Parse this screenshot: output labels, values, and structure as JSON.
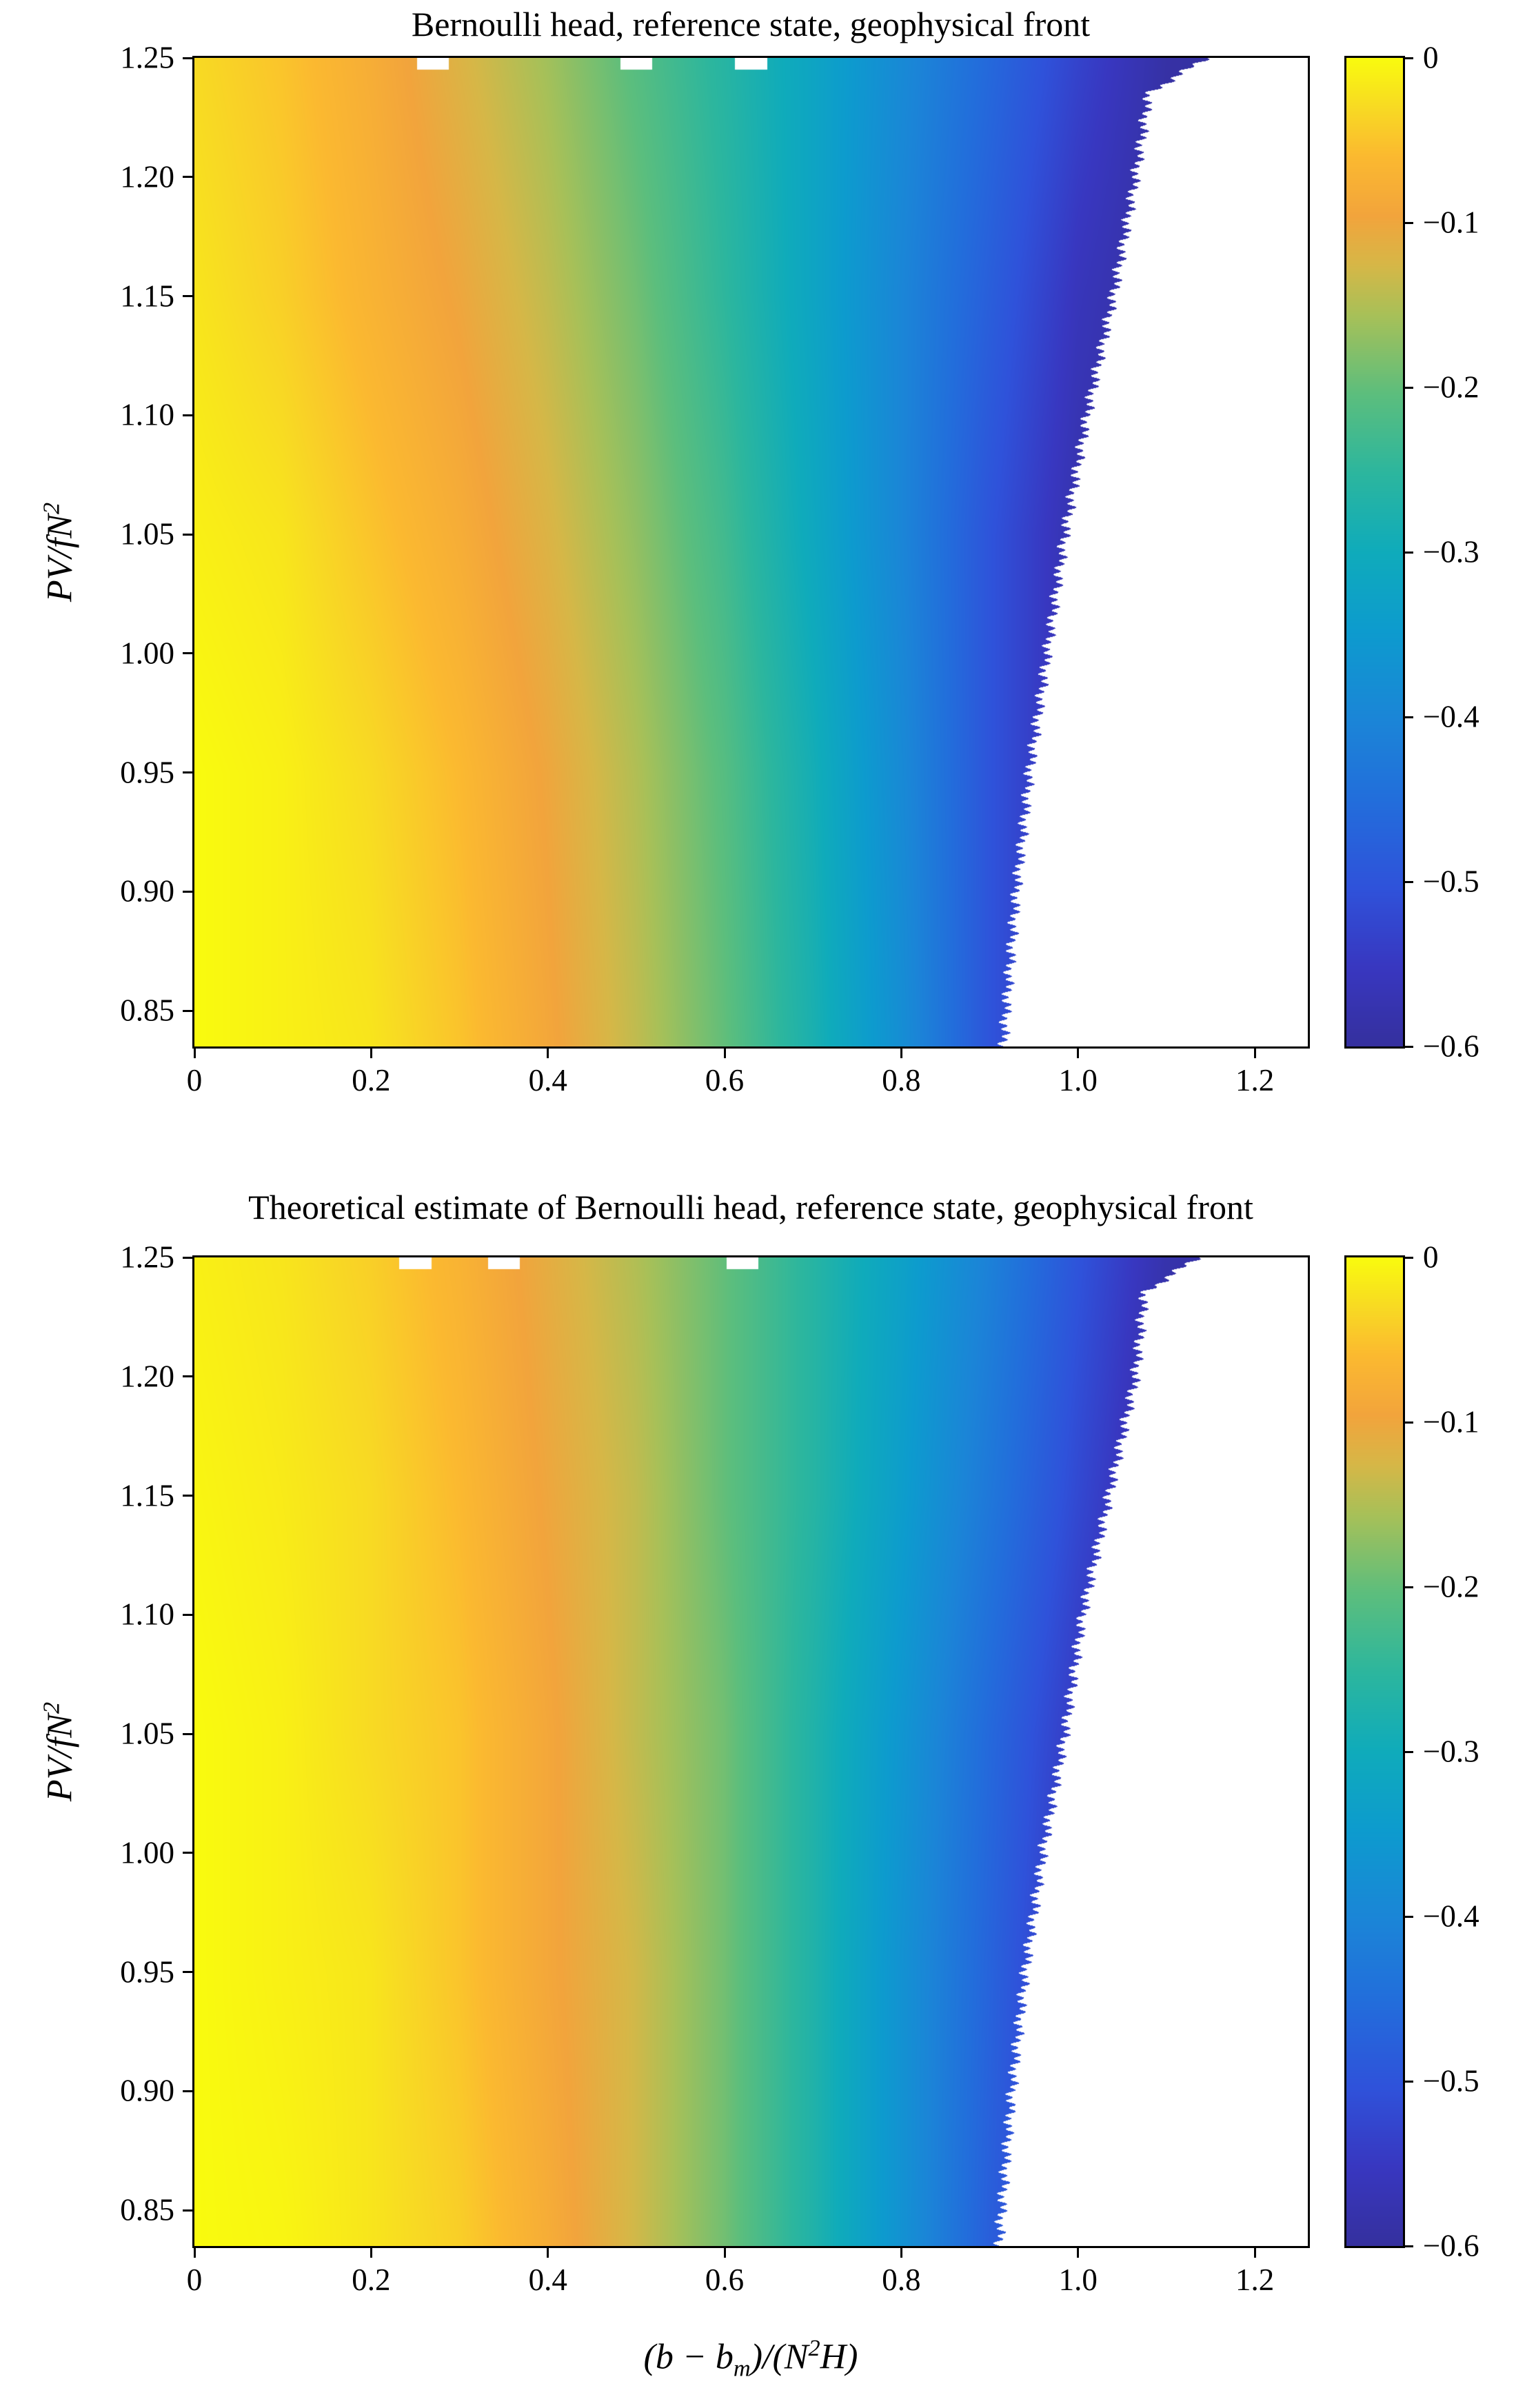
{
  "figure": {
    "background": "#ffffff",
    "description": "Two filled-contour heatmaps of Bernoulli head versus PV and buoyancy coordinate, each with a parula-style colorbar from 0 (yellow) to -0.6 (dark blue); white region at right is missing data beyond the front."
  },
  "colormap": {
    "range": [
      -0.6,
      0
    ],
    "stops": [
      {
        "t": 0.0,
        "color": "#35309e"
      },
      {
        "t": 0.08,
        "color": "#3837c0"
      },
      {
        "t": 0.16,
        "color": "#2f52da"
      },
      {
        "t": 0.25,
        "color": "#226edb"
      },
      {
        "t": 0.33,
        "color": "#1b85d7"
      },
      {
        "t": 0.42,
        "color": "#0d9bce"
      },
      {
        "t": 0.5,
        "color": "#0fabbb"
      },
      {
        "t": 0.58,
        "color": "#2cb69e"
      },
      {
        "t": 0.66,
        "color": "#5cbe7d"
      },
      {
        "t": 0.74,
        "color": "#a8c058"
      },
      {
        "t": 0.79,
        "color": "#d6b747"
      },
      {
        "t": 0.84,
        "color": "#f2a43c"
      },
      {
        "t": 0.9,
        "color": "#fbb930"
      },
      {
        "t": 0.95,
        "color": "#f8da23"
      },
      {
        "t": 1.0,
        "color": "#f9fb0e"
      }
    ]
  },
  "chart_data": [
    {
      "type": "heatmap",
      "title": "Bernoulli head, reference state, geophysical front",
      "ylabel": "PV/fN^2",
      "ylabel_parts": {
        "main": "PV/fN",
        "sup": "2"
      },
      "x_range": [
        0,
        1.26
      ],
      "y_range": [
        0.835,
        1.25
      ],
      "x_ticks": {
        "values": [
          0,
          0.2,
          0.4,
          0.6,
          0.8,
          1.0,
          1.2
        ],
        "labels": [
          "0",
          "0.2",
          "0.4",
          "0.6",
          "0.8",
          "1.0",
          "1.2"
        ]
      },
      "y_ticks": {
        "values": [
          1.25,
          1.2,
          1.15,
          1.1,
          1.05,
          1.0,
          0.95,
          0.9,
          0.85
        ],
        "labels": [
          "1.25",
          "1.20",
          "1.15",
          "1.10",
          "1.05",
          "1.00",
          "0.95",
          "0.90",
          "0.85"
        ]
      },
      "colorbar": {
        "range": [
          -0.6,
          0
        ],
        "tick_values": [
          0,
          -0.1,
          -0.2,
          -0.3,
          -0.4,
          -0.5,
          -0.6
        ],
        "tick_labels": [
          "0",
          "−0.1",
          "−0.2",
          "−0.3",
          "−0.4",
          "−0.5",
          "−0.6"
        ]
      },
      "grid": {
        "x": [
          0,
          0.1,
          0.2,
          0.3,
          0.4,
          0.5,
          0.6,
          0.7,
          0.8,
          0.9,
          1.0,
          1.1,
          1.2
        ],
        "y": [
          0.835,
          0.95,
          1.05,
          1.15,
          1.25
        ],
        "values": [
          [
            0,
            -0.01,
            -0.02,
            -0.05,
            -0.09,
            -0.14,
            -0.2,
            -0.28,
            -0.38,
            -0.5,
            -0.58,
            -0.6,
            -0.6
          ],
          [
            0,
            -0.01,
            -0.03,
            -0.06,
            -0.1,
            -0.15,
            -0.21,
            -0.29,
            -0.39,
            -0.5,
            -0.58,
            -0.6,
            -0.6
          ],
          [
            -0.01,
            -0.02,
            -0.05,
            -0.08,
            -0.12,
            -0.17,
            -0.23,
            -0.31,
            -0.4,
            -0.5,
            -0.58,
            -0.6,
            -0.6
          ],
          [
            -0.02,
            -0.04,
            -0.07,
            -0.1,
            -0.14,
            -0.19,
            -0.25,
            -0.32,
            -0.4,
            -0.48,
            -0.56,
            -0.6,
            -0.6
          ],
          [
            -0.03,
            -0.05,
            -0.08,
            -0.12,
            -0.16,
            -0.21,
            -0.26,
            -0.32,
            -0.39,
            -0.46,
            -0.53,
            -0.59,
            -0.6
          ]
        ]
      },
      "nan_boundary": {
        "y": [
          0.835,
          0.9,
          0.95,
          1.0,
          1.05,
          1.1,
          1.15,
          1.2,
          1.235,
          1.25
        ],
        "x": [
          0.915,
          0.93,
          0.945,
          0.965,
          0.985,
          1.01,
          1.04,
          1.065,
          1.08,
          1.145
        ]
      },
      "top_notches": [
        0.27,
        0.5,
        0.63
      ]
    },
    {
      "type": "heatmap",
      "title": "Theoretical estimate of Bernoulli head, reference state, geophysical front",
      "ylabel": "PV/fN^2",
      "ylabel_parts": {
        "main": "PV/fN",
        "sup": "2"
      },
      "xlabel": "(b - b_m)/(N^2 H)",
      "xlabel_parts": {
        "p1": "(b − b",
        "sub": "m",
        "p2": ")/(N",
        "sup": "2",
        "p3": "H)"
      },
      "x_range": [
        0,
        1.26
      ],
      "y_range": [
        0.835,
        1.25
      ],
      "x_ticks": {
        "values": [
          0,
          0.2,
          0.4,
          0.6,
          0.8,
          1.0,
          1.2
        ],
        "labels": [
          "0",
          "0.2",
          "0.4",
          "0.6",
          "0.8",
          "1.0",
          "1.2"
        ]
      },
      "y_ticks": {
        "values": [
          1.25,
          1.2,
          1.15,
          1.1,
          1.05,
          1.0,
          0.95,
          0.9,
          0.85
        ],
        "labels": [
          "1.25",
          "1.20",
          "1.15",
          "1.10",
          "1.05",
          "1.00",
          "0.95",
          "0.90",
          "0.85"
        ]
      },
      "colorbar": {
        "range": [
          -0.6,
          0
        ],
        "tick_values": [
          0,
          -0.1,
          -0.2,
          -0.3,
          -0.4,
          -0.5,
          -0.6
        ],
        "tick_labels": [
          "0",
          "−0.1",
          "−0.2",
          "−0.3",
          "−0.4",
          "−0.5",
          "−0.6"
        ]
      },
      "grid": {
        "x": [
          0,
          0.1,
          0.2,
          0.3,
          0.4,
          0.5,
          0.6,
          0.7,
          0.8,
          0.9,
          1.0,
          1.1,
          1.2
        ],
        "y": [
          0.835,
          0.95,
          1.05,
          1.15,
          1.25
        ],
        "values": [
          [
            0,
            -0.005,
            -0.02,
            -0.04,
            -0.08,
            -0.13,
            -0.19,
            -0.27,
            -0.37,
            -0.48,
            -0.57,
            -0.6,
            -0.6
          ],
          [
            0,
            -0.01,
            -0.02,
            -0.05,
            -0.09,
            -0.13,
            -0.19,
            -0.27,
            -0.37,
            -0.47,
            -0.57,
            -0.6,
            -0.6
          ],
          [
            0,
            -0.01,
            -0.03,
            -0.05,
            -0.09,
            -0.14,
            -0.19,
            -0.27,
            -0.36,
            -0.46,
            -0.55,
            -0.6,
            -0.6
          ],
          [
            -0.005,
            -0.015,
            -0.03,
            -0.06,
            -0.1,
            -0.14,
            -0.2,
            -0.26,
            -0.34,
            -0.43,
            -0.52,
            -0.6,
            -0.6
          ],
          [
            -0.01,
            -0.02,
            -0.04,
            -0.07,
            -0.11,
            -0.15,
            -0.2,
            -0.26,
            -0.33,
            -0.41,
            -0.5,
            -0.58,
            -0.6
          ]
        ]
      },
      "nan_boundary": {
        "y": [
          0.835,
          0.9,
          0.95,
          1.0,
          1.05,
          1.1,
          1.15,
          1.2,
          1.235,
          1.25
        ],
        "x": [
          0.91,
          0.925,
          0.94,
          0.96,
          0.985,
          1.005,
          1.035,
          1.065,
          1.075,
          1.135
        ]
      },
      "top_notches": [
        0.25,
        0.35,
        0.62
      ]
    }
  ]
}
